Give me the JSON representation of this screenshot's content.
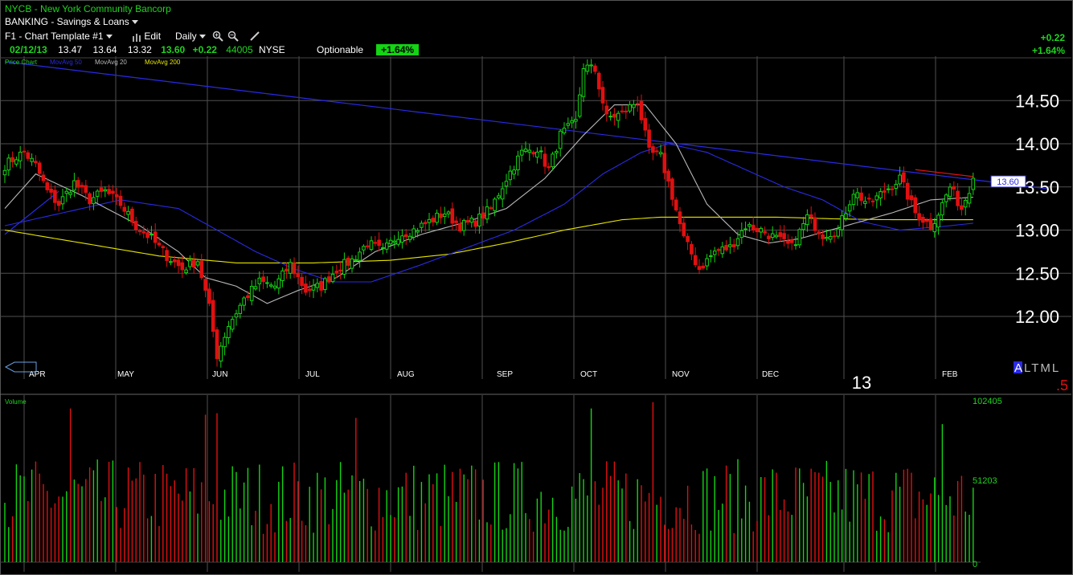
{
  "header": {
    "ticker": "NYCB",
    "company": "New York Community Bancorp",
    "sector": "BANKING - Savings & Loans",
    "template": "F1 - Chart Template #1",
    "edit_label": "Edit",
    "period_label": "Daily",
    "date": "02/12/13",
    "open": "13.47",
    "high": "13.64",
    "low": "13.32",
    "close": "13.60",
    "change": "+0.22",
    "volume": "44005",
    "exchange": "NYSE",
    "optionable": "Optionable",
    "change_pct": "+1.64%",
    "right_change": "+0.22",
    "right_change_pct": "+1.64%",
    "legend_price": "Price Chart",
    "legend_ma50": "MovAvg 50",
    "legend_ma20": "MovAvg 20",
    "legend_ma200": "MovAvg 200",
    "volume_label": "Volume",
    "year_label": "13",
    "altml_a": "A",
    "altml_rest": "LTML",
    "altml_five": ".5",
    "last_price_tag": "13.60"
  },
  "colors": {
    "up": "#14d414",
    "down": "#e01010",
    "ma20": "#b8b8b8",
    "ma50": "#2a2ae6",
    "ma200": "#e6e600",
    "trend_blue": "#2a2ae6",
    "trend_red": "#e01010",
    "grid": "#505050"
  },
  "chart_data": {
    "type": "candlestick",
    "yticks": [
      12.0,
      12.5,
      13.0,
      13.5,
      14.0,
      14.5
    ],
    "ylim": [
      11.45,
      15.1
    ],
    "months": [
      "APR",
      "MAY",
      "JUN",
      "JUL",
      "AUG",
      "SEP",
      "OCT",
      "NOV",
      "DEC",
      "FEB"
    ],
    "volume_ticks": [
      "102405",
      "51203",
      "0"
    ],
    "volume_max": 102405,
    "price_anchors": [
      [
        0,
        13.75
      ],
      [
        3,
        13.85
      ],
      [
        5,
        13.9
      ],
      [
        8,
        13.75
      ],
      [
        11,
        13.45
      ],
      [
        14,
        13.3
      ],
      [
        18,
        13.55
      ],
      [
        22,
        13.35
      ],
      [
        26,
        13.45
      ],
      [
        30,
        13.3
      ],
      [
        34,
        13.05
      ],
      [
        38,
        12.9
      ],
      [
        42,
        12.7
      ],
      [
        46,
        12.55
      ],
      [
        50,
        12.65
      ],
      [
        53,
        12.1
      ],
      [
        55,
        11.55
      ],
      [
        58,
        11.9
      ],
      [
        62,
        12.2
      ],
      [
        66,
        12.4
      ],
      [
        70,
        12.35
      ],
      [
        74,
        12.6
      ],
      [
        78,
        12.3
      ],
      [
        82,
        12.35
      ],
      [
        86,
        12.55
      ],
      [
        90,
        12.65
      ],
      [
        94,
        12.85
      ],
      [
        98,
        12.75
      ],
      [
        102,
        12.95
      ],
      [
        106,
        13.0
      ],
      [
        110,
        13.1
      ],
      [
        114,
        13.2
      ],
      [
        118,
        13.05
      ],
      [
        122,
        13.1
      ],
      [
        126,
        13.25
      ],
      [
        130,
        13.6
      ],
      [
        134,
        13.9
      ],
      [
        138,
        13.95
      ],
      [
        141,
        13.7
      ],
      [
        144,
        14.1
      ],
      [
        148,
        14.25
      ],
      [
        150,
        14.9
      ],
      [
        153,
        14.85
      ],
      [
        156,
        14.3
      ],
      [
        160,
        14.35
      ],
      [
        164,
        14.5
      ],
      [
        167,
        13.9
      ],
      [
        170,
        13.85
      ],
      [
        173,
        13.4
      ],
      [
        176,
        12.9
      ],
      [
        180,
        12.55
      ],
      [
        184,
        12.75
      ],
      [
        188,
        12.8
      ],
      [
        192,
        13.05
      ],
      [
        196,
        13.0
      ],
      [
        200,
        12.9
      ],
      [
        204,
        12.8
      ],
      [
        208,
        13.15
      ],
      [
        212,
        12.95
      ],
      [
        216,
        13.0
      ],
      [
        220,
        13.45
      ],
      [
        224,
        13.3
      ],
      [
        228,
        13.45
      ],
      [
        232,
        13.6
      ],
      [
        236,
        13.2
      ],
      [
        240,
        13.05
      ],
      [
        242,
        13.2
      ],
      [
        245,
        13.5
      ],
      [
        248,
        13.25
      ],
      [
        251,
        13.6
      ]
    ],
    "ma_anchors": {
      "ma20": [
        [
          0,
          13.25
        ],
        [
          8,
          13.65
        ],
        [
          20,
          13.4
        ],
        [
          35,
          13.05
        ],
        [
          45,
          12.75
        ],
        [
          52,
          12.45
        ],
        [
          60,
          12.35
        ],
        [
          68,
          12.15
        ],
        [
          76,
          12.3
        ],
        [
          86,
          12.45
        ],
        [
          96,
          12.75
        ],
        [
          108,
          12.95
        ],
        [
          120,
          13.1
        ],
        [
          130,
          13.25
        ],
        [
          140,
          13.6
        ],
        [
          150,
          14.1
        ],
        [
          158,
          14.45
        ],
        [
          166,
          14.45
        ],
        [
          174,
          14.0
        ],
        [
          182,
          13.3
        ],
        [
          190,
          12.95
        ],
        [
          198,
          12.85
        ],
        [
          206,
          12.9
        ],
        [
          214,
          13.0
        ],
        [
          222,
          13.1
        ],
        [
          230,
          13.2
        ],
        [
          240,
          13.35
        ],
        [
          251,
          13.38
        ]
      ],
      "ma50": [
        [
          0,
          13.05
        ],
        [
          15,
          13.2
        ],
        [
          30,
          13.35
        ],
        [
          45,
          13.25
        ],
        [
          55,
          13.0
        ],
        [
          65,
          12.75
        ],
        [
          75,
          12.55
        ],
        [
          85,
          12.4
        ],
        [
          95,
          12.4
        ],
        [
          108,
          12.6
        ],
        [
          120,
          12.8
        ],
        [
          132,
          13.0
        ],
        [
          145,
          13.3
        ],
        [
          155,
          13.65
        ],
        [
          165,
          13.9
        ],
        [
          172,
          14.0
        ],
        [
          182,
          13.9
        ],
        [
          192,
          13.7
        ],
        [
          202,
          13.5
        ],
        [
          212,
          13.35
        ],
        [
          222,
          13.1
        ],
        [
          232,
          13.0
        ],
        [
          245,
          13.05
        ],
        [
          251,
          13.08
        ]
      ],
      "ma200": [
        [
          0,
          13.0
        ],
        [
          20,
          12.85
        ],
        [
          40,
          12.7
        ],
        [
          60,
          12.62
        ],
        [
          80,
          12.62
        ],
        [
          100,
          12.65
        ],
        [
          115,
          12.72
        ],
        [
          130,
          12.85
        ],
        [
          145,
          13.0
        ],
        [
          160,
          13.12
        ],
        [
          170,
          13.15
        ],
        [
          185,
          13.15
        ],
        [
          200,
          13.15
        ],
        [
          215,
          13.13
        ],
        [
          230,
          13.12
        ],
        [
          251,
          13.12
        ]
      ]
    },
    "trendlines": [
      {
        "color": "blue",
        "from": [
          0,
          12.95
        ],
        "to": [
          14,
          13.45
        ]
      },
      {
        "color": "blue",
        "from": [
          0,
          14.95
        ],
        "to": [
          270,
          13.48
        ]
      },
      {
        "color": "red",
        "from": [
          236,
          13.7
        ],
        "to": [
          251,
          13.62
        ]
      }
    ],
    "volume_spikes": [
      [
        17,
        98000
      ],
      [
        52,
        94000
      ],
      [
        55,
        95000
      ],
      [
        91,
        92000
      ],
      [
        152,
        98000
      ],
      [
        168,
        102000
      ],
      [
        243,
        88000
      ]
    ]
  }
}
